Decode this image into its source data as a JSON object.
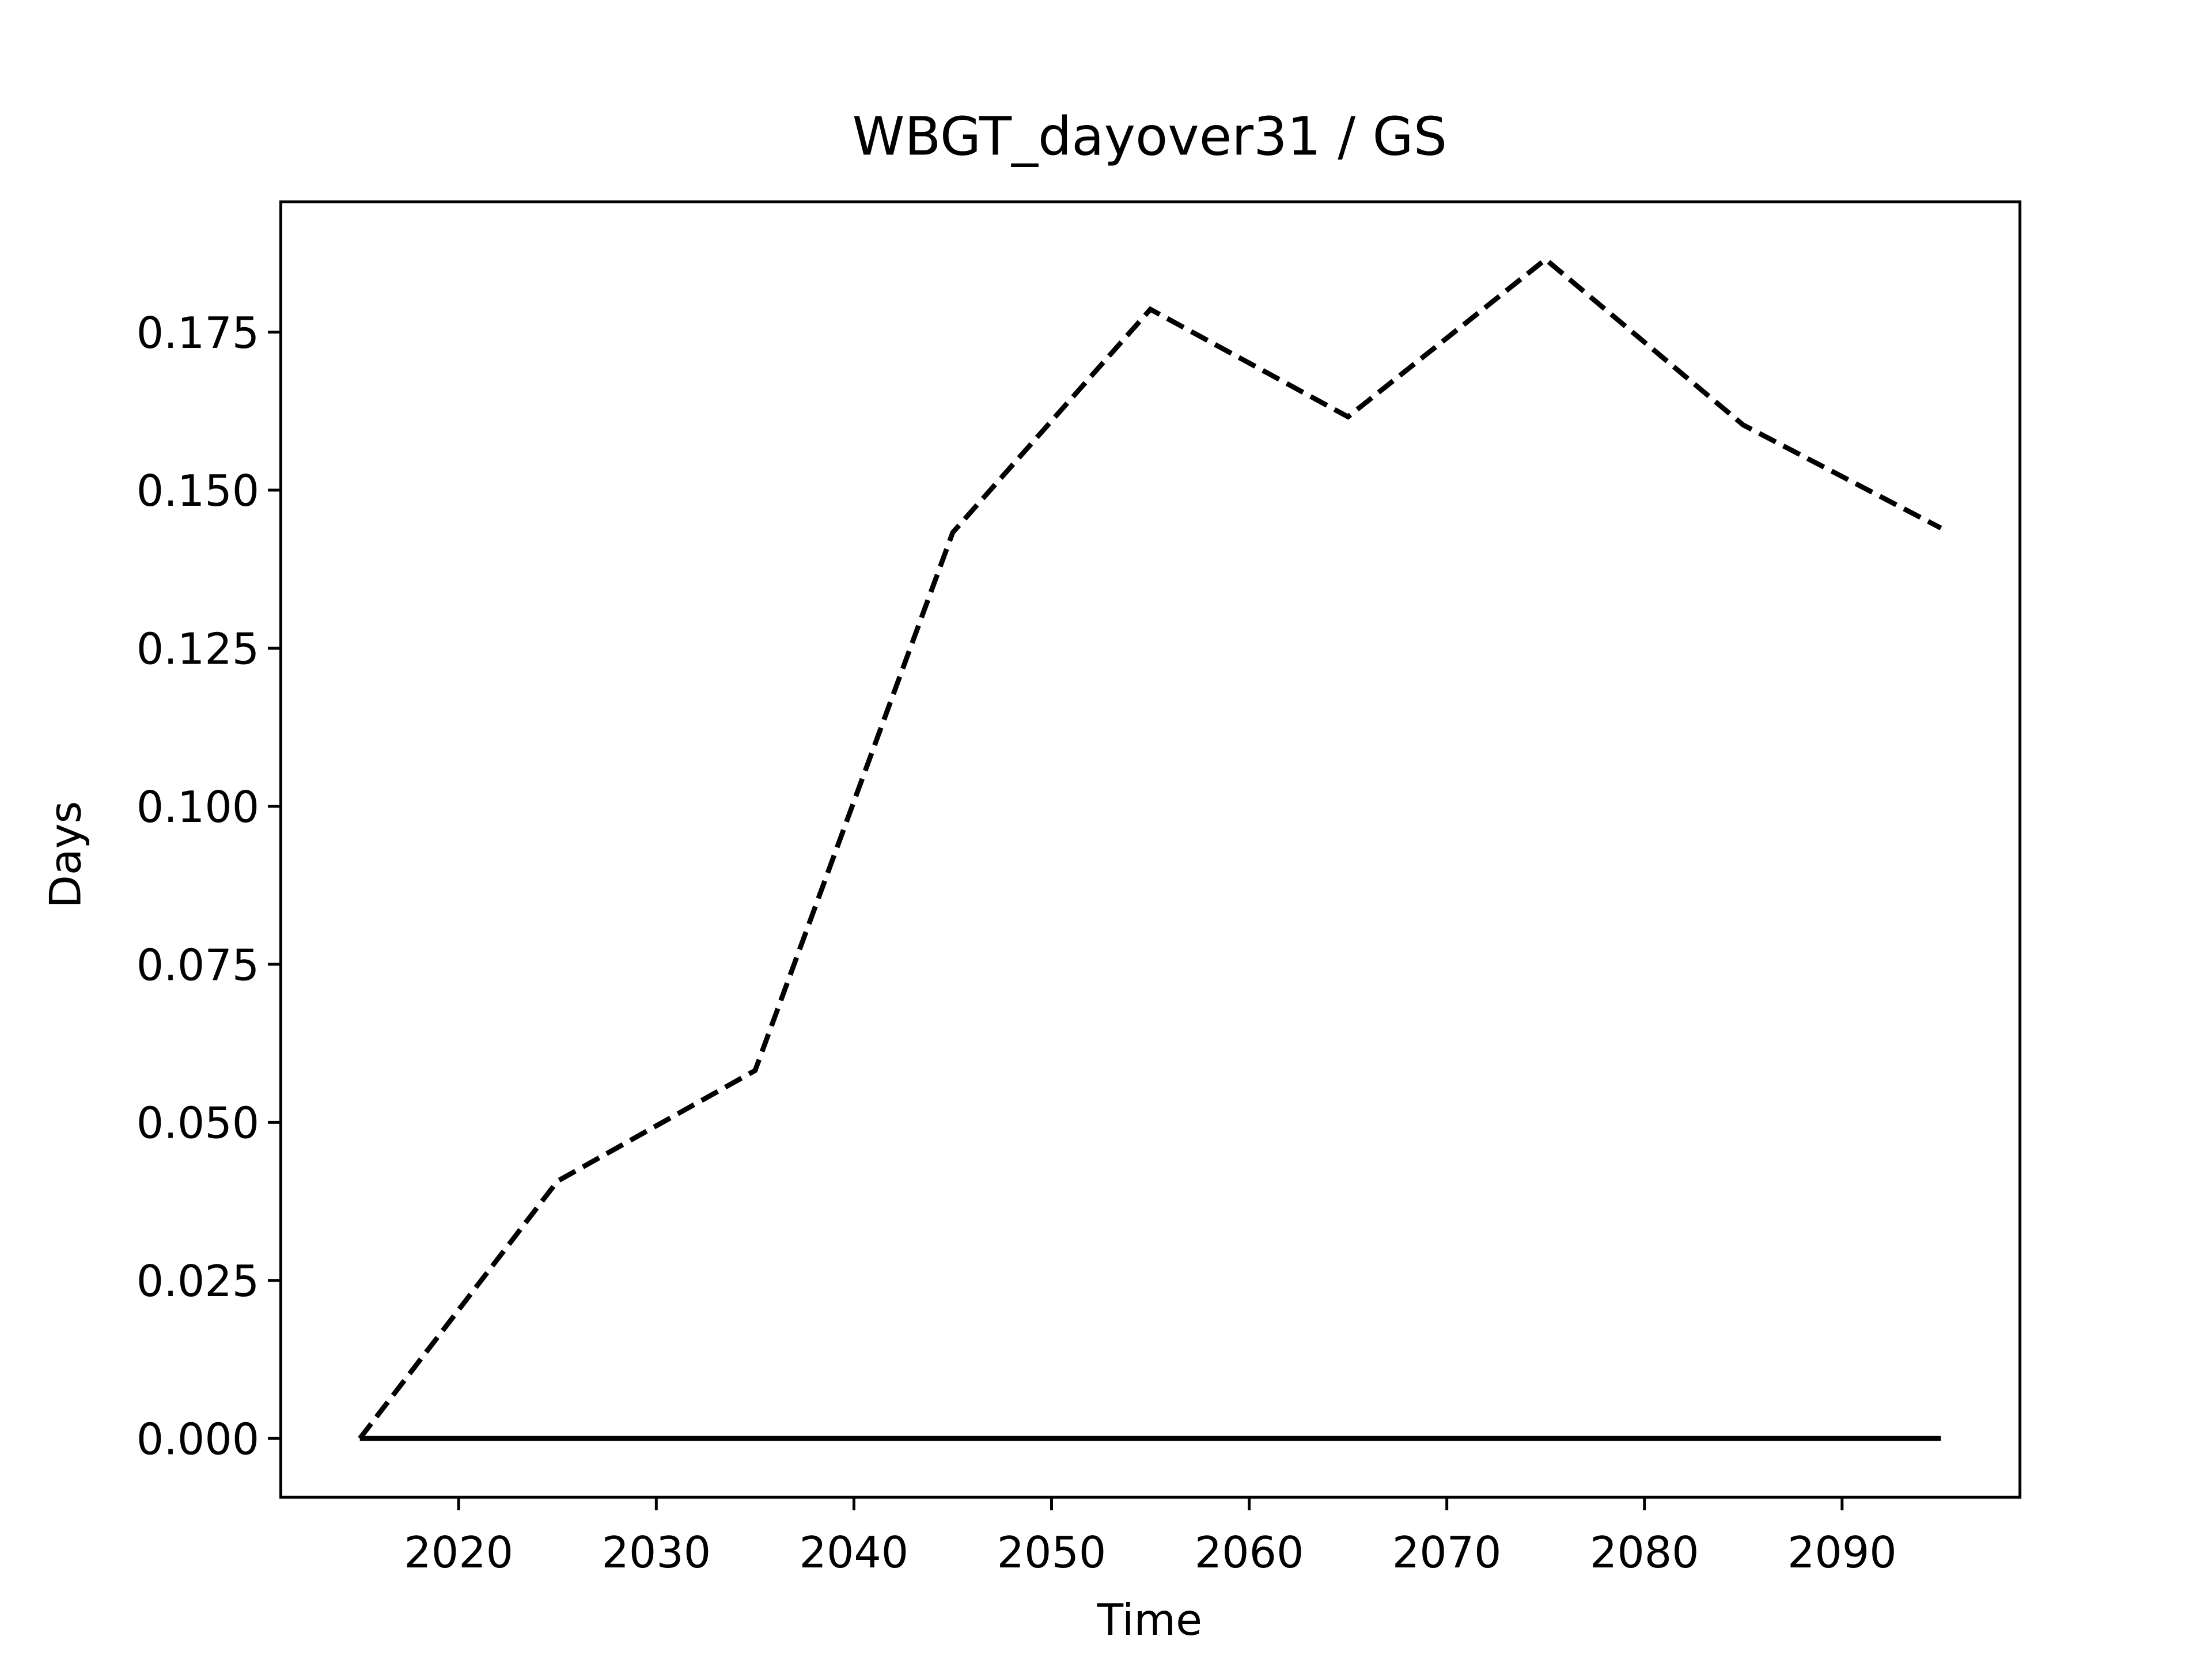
{
  "chart_data": {
    "type": "line",
    "title": "WBGT_dayover31 / GS",
    "x_label": "Time",
    "y_label": "Days",
    "x": [
      2015,
      2025,
      2035,
      2045,
      2055,
      2065,
      2075,
      2085,
      2095
    ],
    "series": [
      {
        "color": "#000000",
        "linestyle": "dashed",
        "values": [
          0,
          0.0407,
          0.0582,
          0.1433,
          0.1786,
          0.1616,
          0.1865,
          0.1603,
          0.144
        ]
      },
      {
        "color": "#000000",
        "linestyle": "solid",
        "values": [
          0,
          0,
          0,
          0,
          0,
          0,
          0,
          0,
          0
        ]
      }
    ],
    "xlim": [
      2011,
      2099
    ],
    "ylim": [
      -0.0093,
      0.1956
    ],
    "xticks": [
      2020,
      2030,
      2040,
      2050,
      2060,
      2070,
      2080,
      2090
    ],
    "yticks": [
      {
        "value": 0,
        "label": "0.000"
      },
      {
        "value": 0.025,
        "label": "0.025"
      },
      {
        "value": 0.05,
        "label": "0.050"
      },
      {
        "value": 0.075,
        "label": "0.075"
      },
      {
        "value": 0.1,
        "label": "0.100"
      },
      {
        "value": 0.125,
        "label": "0.125"
      },
      {
        "value": 0.15,
        "label": "0.150"
      },
      {
        "value": 0.175,
        "label": "0.175"
      }
    ],
    "grid": false
  }
}
